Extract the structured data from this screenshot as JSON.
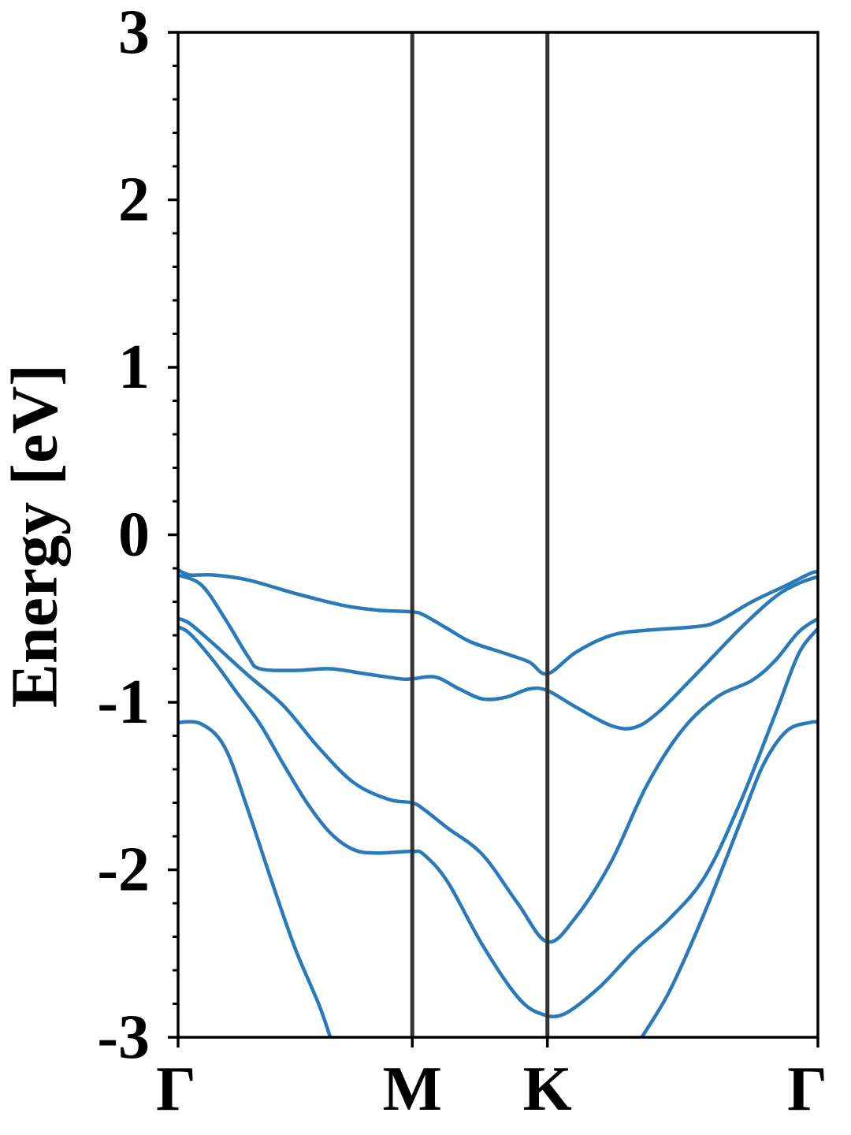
{
  "chart_data": {
    "type": "line",
    "title": "",
    "ylabel": "Energy [eV]",
    "xlabel": "",
    "ylim": [
      -3,
      3
    ],
    "yticks": [
      {
        "value": 3,
        "label": "3"
      },
      {
        "value": 2,
        "label": "2"
      },
      {
        "value": 1,
        "label": "1"
      },
      {
        "value": 0,
        "label": "0"
      },
      {
        "value": -1,
        "label": "-1"
      },
      {
        "value": -2,
        "label": "-2"
      },
      {
        "value": -3,
        "label": "-3"
      }
    ],
    "xlim": [
      0,
      2.732
    ],
    "kpoints": [
      {
        "label": "Γ",
        "x": 0
      },
      {
        "label": "M",
        "x": 1.0
      },
      {
        "label": "K",
        "x": 1.577
      },
      {
        "label": "Γ",
        "x": 2.732
      }
    ],
    "grid": false,
    "colors": {
      "band": "#2a7ab9",
      "kpoint_line": "#333333",
      "axes": "#000000"
    },
    "series": [
      {
        "values": [
          [
            0,
            -0.21
          ],
          [
            0.05,
            -0.24
          ],
          [
            0.15,
            -0.24
          ],
          [
            0.3,
            -0.27
          ],
          [
            0.5,
            -0.35
          ],
          [
            0.7,
            -0.42
          ],
          [
            0.85,
            -0.45
          ],
          [
            1.0,
            -0.46
          ],
          [
            1.05,
            -0.48
          ],
          [
            1.15,
            -0.56
          ],
          [
            1.25,
            -0.64
          ],
          [
            1.4,
            -0.71
          ],
          [
            1.5,
            -0.76
          ],
          [
            1.577,
            -0.83
          ],
          [
            1.7,
            -0.7
          ],
          [
            1.85,
            -0.6
          ],
          [
            2.0,
            -0.57
          ],
          [
            2.2,
            -0.55
          ],
          [
            2.3,
            -0.52
          ],
          [
            2.45,
            -0.4
          ],
          [
            2.6,
            -0.3
          ],
          [
            2.7,
            -0.23
          ],
          [
            2.732,
            -0.22
          ]
        ]
      },
      {
        "values": [
          [
            0,
            -0.24
          ],
          [
            0.1,
            -0.3
          ],
          [
            0.2,
            -0.5
          ],
          [
            0.3,
            -0.73
          ],
          [
            0.35,
            -0.8
          ],
          [
            0.5,
            -0.81
          ],
          [
            0.65,
            -0.8
          ],
          [
            0.8,
            -0.83
          ],
          [
            0.95,
            -0.86
          ],
          [
            1.0,
            -0.86
          ],
          [
            1.1,
            -0.85
          ],
          [
            1.2,
            -0.92
          ],
          [
            1.3,
            -0.98
          ],
          [
            1.4,
            -0.97
          ],
          [
            1.5,
            -0.92
          ],
          [
            1.577,
            -0.93
          ],
          [
            1.7,
            -1.03
          ],
          [
            1.85,
            -1.14
          ],
          [
            1.95,
            -1.15
          ],
          [
            2.05,
            -1.06
          ],
          [
            2.2,
            -0.85
          ],
          [
            2.4,
            -0.56
          ],
          [
            2.55,
            -0.37
          ],
          [
            2.65,
            -0.29
          ],
          [
            2.732,
            -0.25
          ]
        ]
      },
      {
        "values": [
          [
            0,
            -0.5
          ],
          [
            0.05,
            -0.53
          ],
          [
            0.15,
            -0.65
          ],
          [
            0.3,
            -0.84
          ],
          [
            0.45,
            -1.02
          ],
          [
            0.6,
            -1.27
          ],
          [
            0.75,
            -1.48
          ],
          [
            0.9,
            -1.58
          ],
          [
            1.0,
            -1.6
          ],
          [
            1.05,
            -1.64
          ],
          [
            1.15,
            -1.75
          ],
          [
            1.3,
            -1.91
          ],
          [
            1.45,
            -2.2
          ],
          [
            1.577,
            -2.43
          ],
          [
            1.7,
            -2.28
          ],
          [
            1.85,
            -1.95
          ],
          [
            2.0,
            -1.5
          ],
          [
            2.15,
            -1.17
          ],
          [
            2.3,
            -0.97
          ],
          [
            2.45,
            -0.87
          ],
          [
            2.55,
            -0.75
          ],
          [
            2.65,
            -0.58
          ],
          [
            2.732,
            -0.5
          ]
        ]
      },
      {
        "values": [
          [
            0,
            -0.55
          ],
          [
            0.05,
            -0.59
          ],
          [
            0.15,
            -0.75
          ],
          [
            0.25,
            -0.94
          ],
          [
            0.35,
            -1.13
          ],
          [
            0.45,
            -1.37
          ],
          [
            0.55,
            -1.6
          ],
          [
            0.65,
            -1.78
          ],
          [
            0.75,
            -1.88
          ],
          [
            0.85,
            -1.9
          ],
          [
            1.0,
            -1.89
          ],
          [
            1.05,
            -1.91
          ],
          [
            1.15,
            -2.07
          ],
          [
            1.3,
            -2.45
          ],
          [
            1.45,
            -2.76
          ],
          [
            1.55,
            -2.86
          ],
          [
            1.65,
            -2.86
          ],
          [
            1.8,
            -2.7
          ],
          [
            1.95,
            -2.48
          ],
          [
            2.1,
            -2.29
          ],
          [
            2.25,
            -2.04
          ],
          [
            2.4,
            -1.6
          ],
          [
            2.55,
            -1.07
          ],
          [
            2.65,
            -0.71
          ],
          [
            2.732,
            -0.56
          ]
        ]
      },
      {
        "values": [
          [
            0,
            -1.12
          ],
          [
            0.1,
            -1.13
          ],
          [
            0.2,
            -1.27
          ],
          [
            0.3,
            -1.65
          ],
          [
            0.4,
            -2.07
          ],
          [
            0.5,
            -2.47
          ],
          [
            0.6,
            -2.8
          ],
          [
            0.65,
            -3.0
          ]
        ]
      },
      {
        "values": [
          [
            1.98,
            -3.0
          ],
          [
            2.1,
            -2.72
          ],
          [
            2.25,
            -2.25
          ],
          [
            2.4,
            -1.72
          ],
          [
            2.5,
            -1.37
          ],
          [
            2.6,
            -1.17
          ],
          [
            2.7,
            -1.12
          ],
          [
            2.732,
            -1.12
          ]
        ]
      }
    ]
  }
}
